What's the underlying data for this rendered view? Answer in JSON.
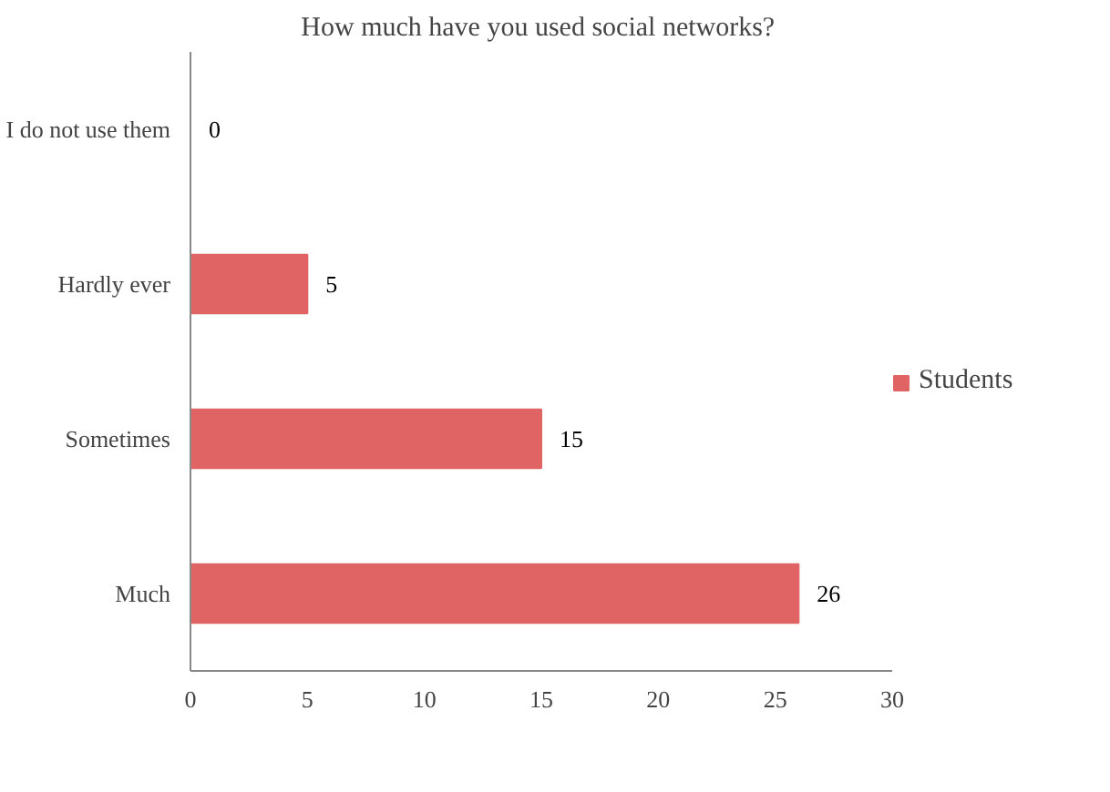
{
  "chart_data": {
    "type": "bar",
    "orientation": "horizontal",
    "title": "How much  have you used social networks?",
    "categories": [
      "I do not use them",
      "Hardly ever",
      "Sometimes",
      "Much"
    ],
    "series": [
      {
        "name": "Students",
        "color": "#e06464",
        "values": [
          0,
          5,
          15,
          26
        ]
      }
    ],
    "xlim": [
      0,
      30
    ],
    "xticks": [
      0,
      5,
      10,
      15,
      20,
      25,
      30
    ],
    "data_labels": true,
    "grid": false,
    "legend": "right"
  }
}
